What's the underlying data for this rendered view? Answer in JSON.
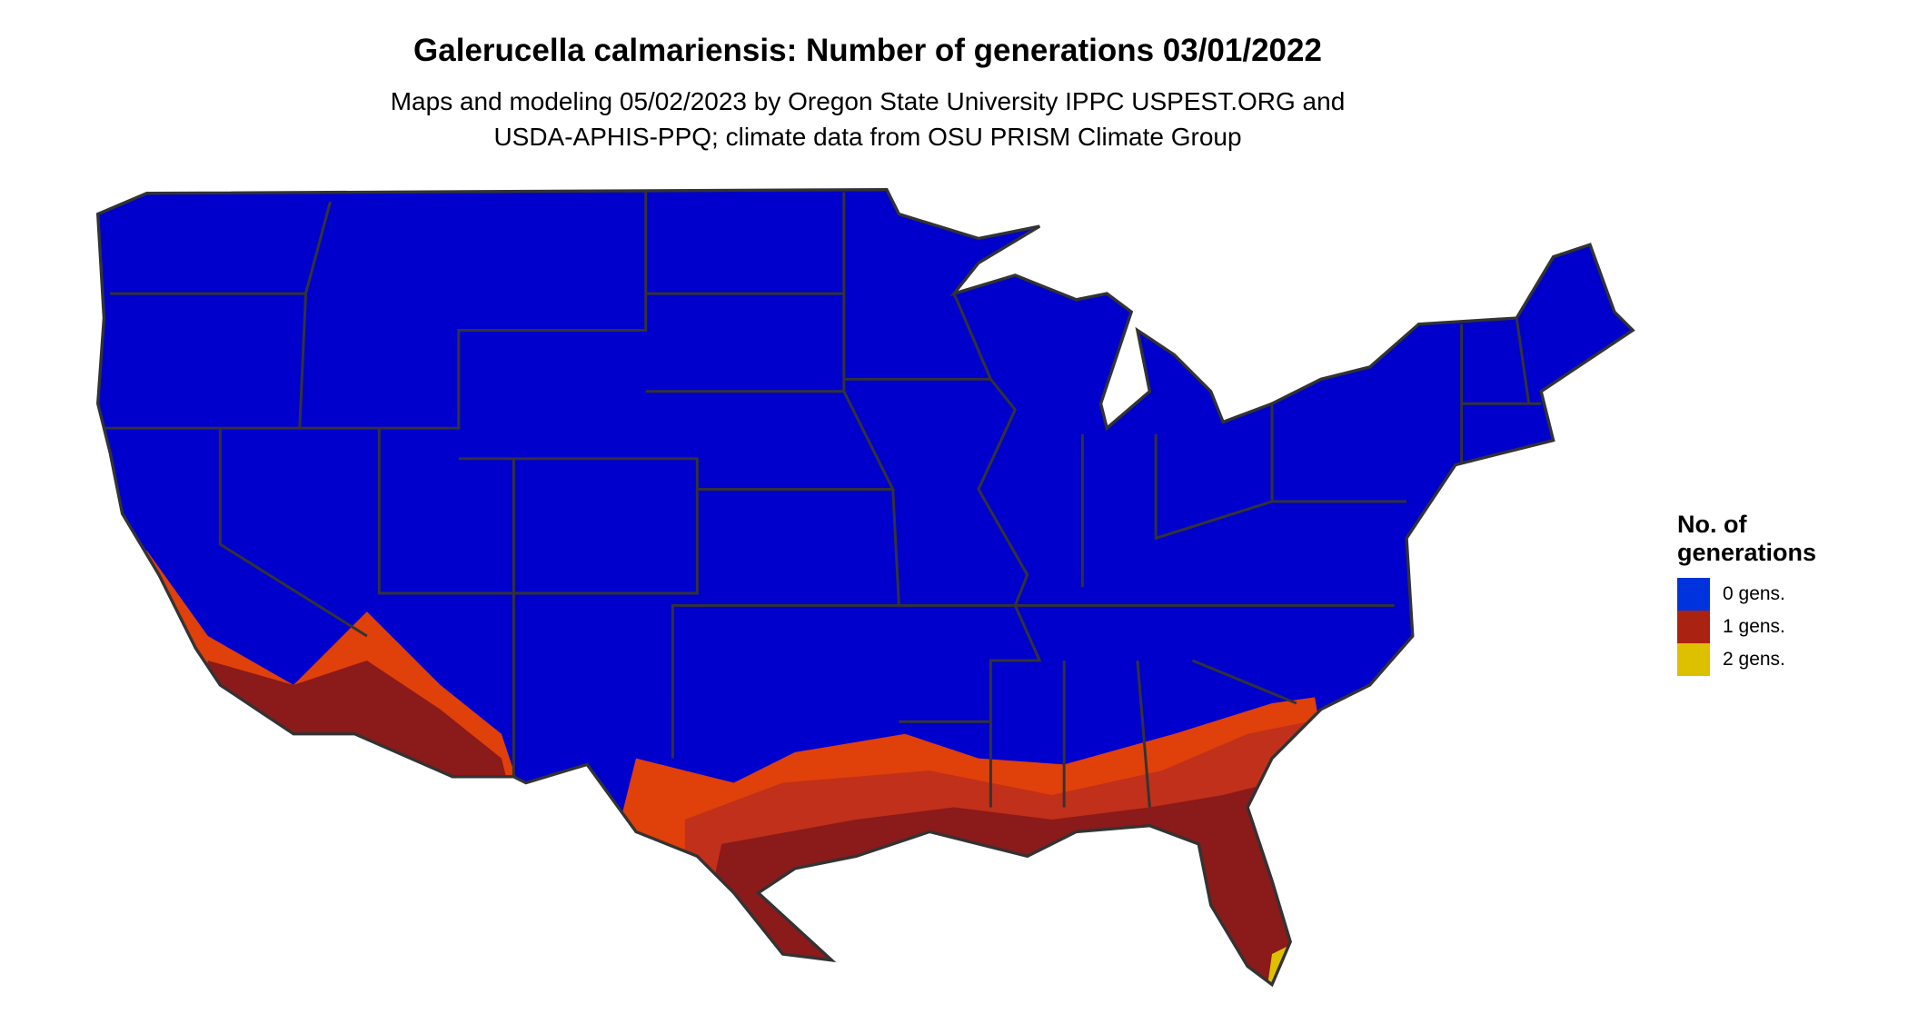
{
  "title": "Galerucella calmariensis: Number of generations 03/01/2022",
  "subtitle": [
    "Maps and modeling 05/02/2023 by Oregon State University IPPC USPEST.ORG and",
    "USDA-APHIS-PPQ; climate data from OSU PRISM Climate Group"
  ],
  "legend": {
    "title": "No. of generations",
    "items": [
      {
        "label": "0 gens.",
        "color": "#0033dd"
      },
      {
        "label": "1 gens.",
        "color": "#aa2211"
      },
      {
        "label": "2 gens.",
        "color": "#ddc000"
      }
    ]
  },
  "map_colors": {
    "zero": "#0000cc",
    "one_dark": "#8b1a1a",
    "one_mid": "#c0301a",
    "one_light": "#e0400a",
    "two": "#ddc000",
    "borders": "#333333"
  }
}
